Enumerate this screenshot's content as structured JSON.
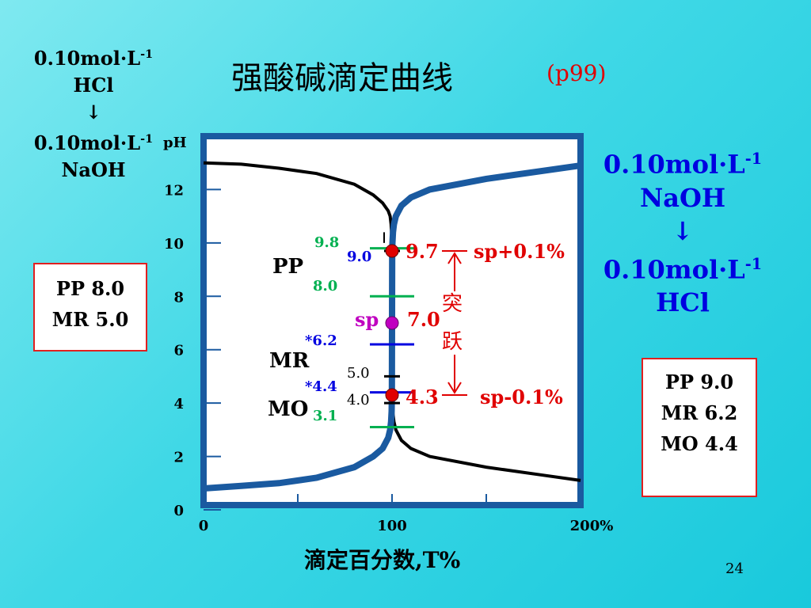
{
  "slide": {
    "title": "强酸碱滴定曲线",
    "page_ref": "(p99)",
    "slide_number": "24"
  },
  "left": {
    "titrant_conc": "0.10mol·L",
    "titrant": "HCl",
    "arrow": "↓",
    "analyte_conc": "0.10mol·L",
    "analyte": "NaOH",
    "exp": "-1",
    "box": [
      "PP 8.0",
      "MR 5.0"
    ]
  },
  "right": {
    "titrant_conc": "0.10mol·L",
    "titrant": "NaOH",
    "arrow": "↓",
    "analyte_conc": "0.10mol·L",
    "analyte": "HCl",
    "exp": "-1",
    "box": [
      "PP 9.0",
      "MR 6.2",
      "MO 4.4"
    ]
  },
  "colors": {
    "curve_acid": "#1a5aa0",
    "curve_base": "#000000",
    "axis_frame": "#1a5aa0",
    "pp_green": "#00b050",
    "mr_blue": "#0000e0",
    "red": "#e00000",
    "purple": "#c000c0"
  },
  "chart_data": {
    "type": "line",
    "xlabel": "滴定百分数,T%",
    "ylabel": "pH",
    "xlim": [
      0,
      200
    ],
    "ylim": [
      0,
      14
    ],
    "x_ticks": [
      0,
      100,
      200
    ],
    "x_tick_labels": [
      "0",
      "100",
      "200%"
    ],
    "y_ticks": [
      0,
      2,
      4,
      6,
      8,
      10,
      12
    ],
    "series": [
      {
        "key": "naoh_titrates_hcl",
        "x": [
          0,
          20,
          40,
          60,
          80,
          90,
          95,
          98,
          99,
          99.5,
          99.8,
          99.9,
          100,
          100.1,
          100.2,
          100.5,
          101,
          102,
          105,
          110,
          120,
          150,
          180,
          200
        ],
        "y": [
          0.8,
          0.9,
          1.0,
          1.2,
          1.6,
          2.0,
          2.3,
          2.7,
          3.0,
          3.3,
          3.7,
          4.3,
          7.0,
          9.7,
          10.0,
          10.4,
          10.7,
          11.0,
          11.4,
          11.7,
          12.0,
          12.4,
          12.7,
          12.9
        ]
      },
      {
        "key": "hcl_titrates_naoh",
        "x": [
          0,
          20,
          40,
          60,
          80,
          90,
          95,
          98,
          99,
          99.5,
          99.8,
          99.9,
          100,
          100.1,
          100.2,
          100.5,
          101,
          102,
          105,
          110,
          120,
          150,
          180,
          200
        ],
        "y": [
          13.0,
          12.95,
          12.8,
          12.6,
          12.2,
          11.8,
          11.5,
          11.2,
          11.0,
          10.7,
          10.3,
          9.7,
          7.0,
          4.3,
          4.0,
          3.6,
          3.3,
          3.0,
          2.6,
          2.3,
          2.0,
          1.6,
          1.3,
          1.1
        ]
      }
    ],
    "annotations": {
      "pp_label": "PP",
      "mr_label": "MR",
      "mo_label": "MO",
      "pp_top": "9.8",
      "pp_bottom": "8.0",
      "pp_mid": "9.0",
      "mr_top": "*6.2",
      "mr_bottom": "*4.4",
      "mo_bottom": "3.1",
      "mr_end_base": "5.0",
      "mo_end_base": "4.0",
      "sp_plus_value": "9.7",
      "sp_plus_label": "sp+0.1%",
      "sp_minus_value": "4.3",
      "sp_minus_label": "sp-0.1%",
      "sp_label": "sp",
      "sp_value": "7.0",
      "jump_char_1": "突",
      "jump_char_2": "跃"
    }
  }
}
